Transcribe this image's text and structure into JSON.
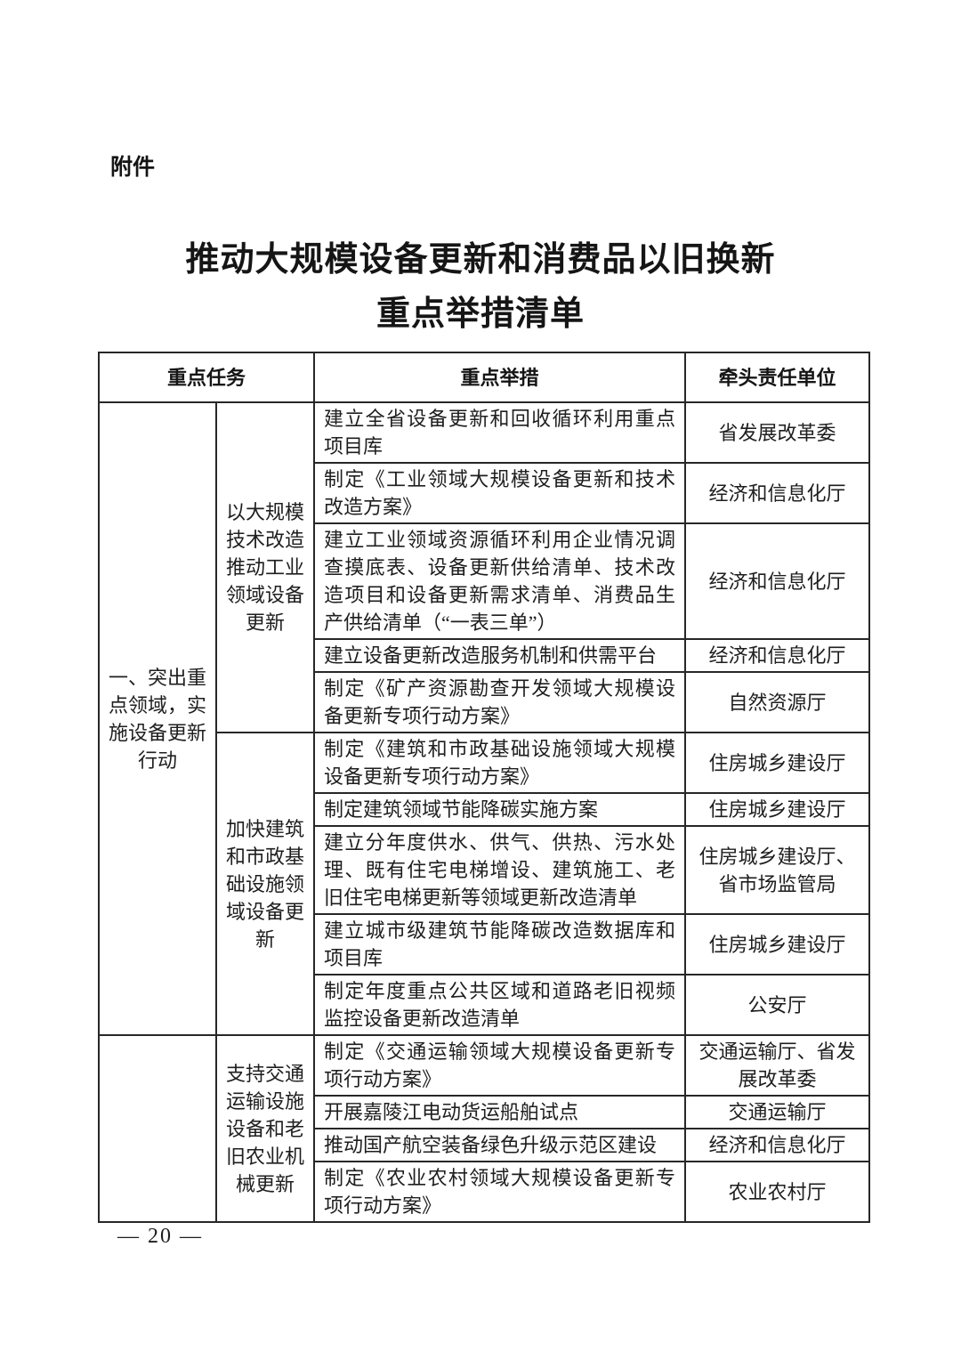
{
  "page": {
    "attachment_label": "附件",
    "title_line1": "推动大规模设备更新和消费品以旧换新",
    "title_line2": "重点举措清单",
    "footer_page_number": "— 20 —"
  },
  "table": {
    "headers": [
      "重点任务",
      "重点举措",
      "牵头责任单位"
    ],
    "groups": [
      {
        "task": "一、突出重点领域，实施设备更新行动",
        "subgroups": [
          {
            "subtask": "以大规模技术改造推动工业领域设备更新",
            "rows": [
              {
                "measure": "建立全省设备更新和回收循环利用重点项目库",
                "unit": "省发展改革委"
              },
              {
                "measure": "制定《工业领域大规模设备更新和技术改造方案》",
                "unit": "经济和信息化厅"
              },
              {
                "measure": "建立工业领域资源循环利用企业情况调查摸底表、设备更新供给清单、技术改造项目和设备更新需求清单、消费品生产供给清单（“一表三单”）",
                "unit": "经济和信息化厅"
              },
              {
                "measure": "建立设备更新改造服务机制和供需平台",
                "unit": "经济和信息化厅"
              },
              {
                "measure": "制定《矿产资源勘查开发领域大规模设备更新专项行动方案》",
                "unit": "自然资源厅"
              }
            ]
          },
          {
            "subtask": "加快建筑和市政基础设施领域设备更新",
            "rows": [
              {
                "measure": "制定《建筑和市政基础设施领域大规模设备更新专项行动方案》",
                "unit": "住房城乡建设厅"
              },
              {
                "measure": "制定建筑领域节能降碳实施方案",
                "unit": "住房城乡建设厅"
              },
              {
                "measure": "建立分年度供水、供气、供热、污水处理、既有住宅电梯增设、建筑施工、老旧住宅电梯更新等领域更新改造清单",
                "unit": "住房城乡建设厅、省市场监管局"
              },
              {
                "measure": "建立城市级建筑节能降碳改造数据库和项目库",
                "unit": "住房城乡建设厅"
              },
              {
                "measure": "制定年度重点公共区域和道路老旧视频监控设备更新改造清单",
                "unit": "公安厅"
              }
            ]
          }
        ]
      },
      {
        "task": "",
        "subgroups": [
          {
            "subtask": "支持交通运输设施设备和老旧农业机械更新",
            "rows": [
              {
                "measure": "制定《交通运输领域大规模设备更新专项行动方案》",
                "unit": "交通运输厅、省发展改革委"
              },
              {
                "measure": "开展嘉陵江电动货运船舶试点",
                "unit": "交通运输厅"
              },
              {
                "measure": "推动国产航空装备绿色升级示范区建设",
                "unit": "经济和信息化厅"
              },
              {
                "measure": "制定《农业农村领域大规模设备更新专项行动方案》",
                "unit": "农业农村厅"
              }
            ]
          }
        ]
      }
    ]
  }
}
